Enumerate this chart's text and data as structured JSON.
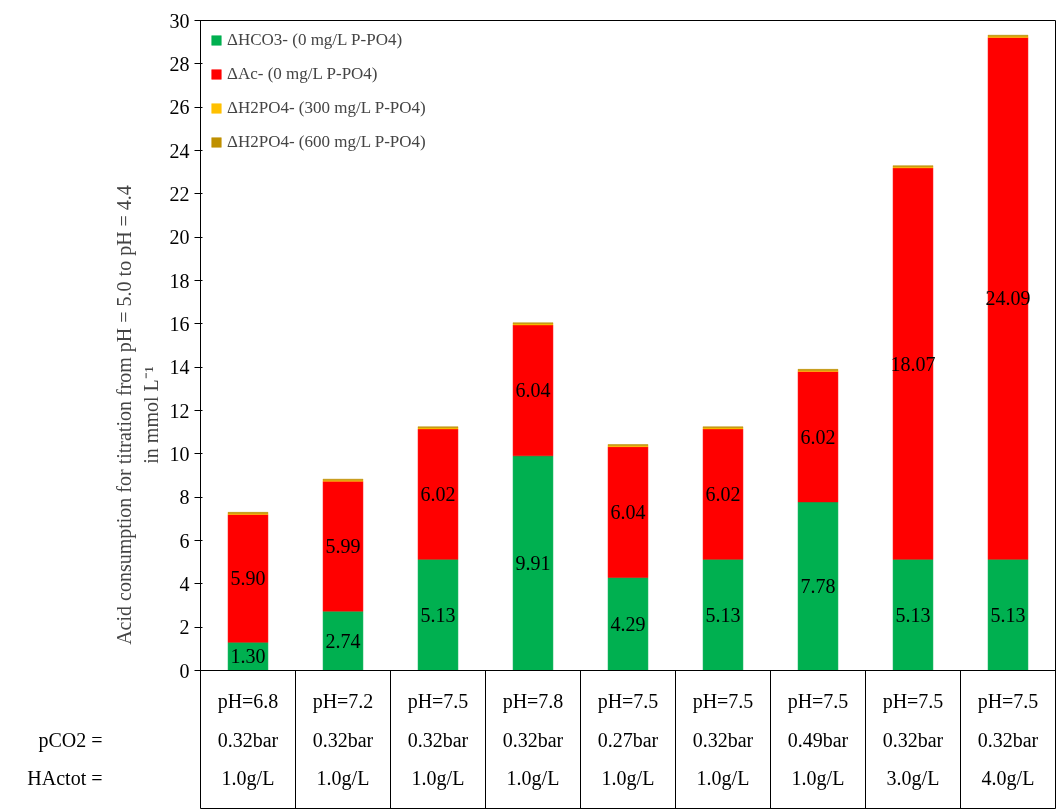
{
  "chart_data": {
    "type": "bar",
    "stacked": true,
    "ylabel": "Acid consumption for titration from pH = 5.0 to pH = 4.4\nin mmol L⁻¹",
    "categories": [
      "pH=6.8\n0.32bar\n1.0g/L",
      "pH=7.2\n0.32bar\n1.0g/L",
      "pH=7.5\n0.32bar\n1.0g/L",
      "pH=7.8\n0.32bar\n1.0g/L",
      "pH=7.5\n0.27bar\n1.0g/L",
      "pH=7.5\n0.32bar\n1.0g/L",
      "pH=7.5\n0.49bar\n1.0g/L",
      "pH=7.5\n0.32bar\n3.0g/L",
      "pH=7.5\n0.32bar\n4.0g/L"
    ],
    "series": [
      {
        "name": "ΔHCO3- (0 mg/L P-PO4)",
        "color": "#00b050",
        "values": [
          1.3,
          2.74,
          5.13,
          9.91,
          4.29,
          5.13,
          7.78,
          5.13,
          5.13
        ],
        "value_labels": [
          "1.30",
          "2.74",
          "5.13",
          "9.91",
          "4.29",
          "5.13",
          "7.78",
          "5.13",
          "5.13"
        ]
      },
      {
        "name": "ΔAc- (0 mg/L P-PO4)",
        "color": "#ff0000",
        "values": [
          5.9,
          5.99,
          6.02,
          6.04,
          6.04,
          6.02,
          6.02,
          18.07,
          24.09
        ],
        "value_labels": [
          "5.90",
          "5.99",
          "6.02",
          "6.04",
          "6.04",
          "6.02",
          "6.02",
          "18.07",
          "24.09"
        ]
      },
      {
        "name": "ΔH2PO4- (300 mg/L P-PO4)",
        "color": "#ffc000",
        "values": [
          0.05,
          0.05,
          0.05,
          0.05,
          0.05,
          0.05,
          0.05,
          0.05,
          0.05
        ]
      },
      {
        "name": "ΔH2PO4- (600 mg/L P-PO4)",
        "color": "#bf9000",
        "values": [
          0.05,
          0.05,
          0.05,
          0.05,
          0.05,
          0.05,
          0.05,
          0.05,
          0.05
        ]
      }
    ],
    "annotations": [
      "pCO2 =",
      "HActot ="
    ],
    "ylim": [
      0,
      30
    ],
    "yticks": [
      0,
      2,
      4,
      6,
      8,
      10,
      12,
      14,
      16,
      18,
      20,
      22,
      24,
      26,
      28,
      30
    ],
    "grid": false,
    "legend": "top left"
  }
}
